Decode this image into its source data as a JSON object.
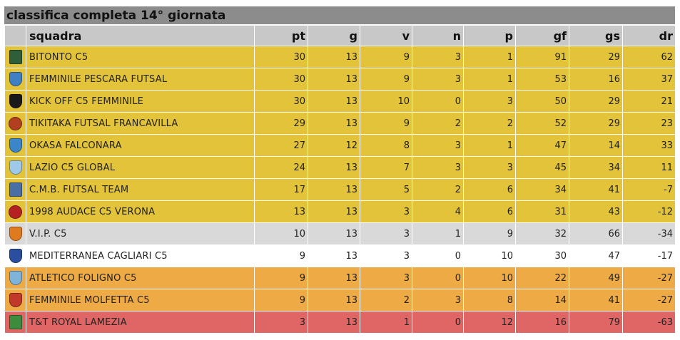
{
  "title": "classifica completa 14° giornata",
  "columns": {
    "team": "squadra",
    "pt": "pt",
    "g": "g",
    "v": "v",
    "n": "n",
    "p": "p",
    "gf": "gf",
    "gs": "gs",
    "dr": "dr"
  },
  "colors": {
    "gold": "#e2c33a",
    "grey": "#d9d9d9",
    "white": "#ffffff",
    "orange": "#eeaa45",
    "red": "#e06666",
    "header": "#c8c8c8",
    "title_bar": "#8c8c8c"
  },
  "rows": [
    {
      "team": "BITONTO C5",
      "pt": "30",
      "g": "13",
      "v": "9",
      "n": "3",
      "p": "1",
      "gf": "91",
      "gs": "29",
      "dr": "62",
      "zone": "gold",
      "logo_icon": "bitonto-crest-icon",
      "logo_color": "#2f5f3a",
      "logo_shape": "square"
    },
    {
      "team": "FEMMINILE PESCARA FUTSAL",
      "pt": "30",
      "g": "13",
      "v": "9",
      "n": "3",
      "p": "1",
      "gf": "53",
      "gs": "16",
      "dr": "37",
      "zone": "gold",
      "logo_icon": "pescara-crest-icon",
      "logo_color": "#3f7fc4",
      "logo_shape": "shield"
    },
    {
      "team": "KICK OFF C5 FEMMINILE",
      "pt": "30",
      "g": "13",
      "v": "10",
      "n": "0",
      "p": "3",
      "gf": "50",
      "gs": "29",
      "dr": "21",
      "zone": "gold",
      "logo_icon": "kickoff-crest-icon",
      "logo_color": "#1a1a1a",
      "logo_shape": "shield"
    },
    {
      "team": "TIKITAKA FUTSAL FRANCAVILLA",
      "pt": "29",
      "g": "13",
      "v": "9",
      "n": "2",
      "p": "2",
      "gf": "52",
      "gs": "29",
      "dr": "23",
      "zone": "gold",
      "logo_icon": "tikitaka-crest-icon",
      "logo_color": "#b0401f",
      "logo_shape": "round"
    },
    {
      "team": "OKASA FALCONARA",
      "pt": "27",
      "g": "12",
      "v": "8",
      "n": "3",
      "p": "1",
      "gf": "47",
      "gs": "14",
      "dr": "33",
      "zone": "gold",
      "logo_icon": "okasa-crest-icon",
      "logo_color": "#3a86c8",
      "logo_shape": "shield"
    },
    {
      "team": "LAZIO C5 GLOBAL",
      "pt": "24",
      "g": "13",
      "v": "7",
      "n": "3",
      "p": "3",
      "gf": "45",
      "gs": "34",
      "dr": "11",
      "zone": "gold",
      "logo_icon": "lazio-eagle-icon",
      "logo_color": "#9ec9e8",
      "logo_shape": "shield"
    },
    {
      "team": "C.M.B. FUTSAL TEAM",
      "pt": "17",
      "g": "13",
      "v": "5",
      "n": "2",
      "p": "6",
      "gf": "34",
      "gs": "41",
      "dr": "-7",
      "zone": "gold",
      "logo_icon": "cmb-crest-icon",
      "logo_color": "#4a6fa5",
      "logo_shape": "square"
    },
    {
      "team": "1998 AUDACE C5 VERONA",
      "pt": "13",
      "g": "13",
      "v": "3",
      "n": "4",
      "p": "6",
      "gf": "31",
      "gs": "43",
      "dr": "-12",
      "zone": "gold",
      "logo_icon": "audace-crest-icon",
      "logo_color": "#b52222",
      "logo_shape": "round"
    },
    {
      "team": "V.I.P. C5",
      "pt": "10",
      "g": "13",
      "v": "3",
      "n": "1",
      "p": "9",
      "gf": "32",
      "gs": "66",
      "dr": "-34",
      "zone": "grey",
      "logo_icon": "vip-crest-icon",
      "logo_color": "#e07a1f",
      "logo_shape": "shield"
    },
    {
      "team": "MEDITERRANEA CAGLIARI C5",
      "pt": "9",
      "g": "13",
      "v": "3",
      "n": "0",
      "p": "10",
      "gf": "30",
      "gs": "47",
      "dr": "-17",
      "zone": "white",
      "logo_icon": "mediterranea-crest-icon",
      "logo_color": "#2b4f9e",
      "logo_shape": "shield"
    },
    {
      "team": "ATLETICO FOLIGNO C5",
      "pt": "9",
      "g": "13",
      "v": "3",
      "n": "0",
      "p": "10",
      "gf": "22",
      "gs": "49",
      "dr": "-27",
      "zone": "orange",
      "logo_icon": "foligno-crest-icon",
      "logo_color": "#7fb3d9",
      "logo_shape": "shield"
    },
    {
      "team": "FEMMINILE MOLFETTA C5",
      "pt": "9",
      "g": "13",
      "v": "2",
      "n": "3",
      "p": "8",
      "gf": "14",
      "gs": "41",
      "dr": "-27",
      "zone": "orange",
      "logo_icon": "molfetta-crest-icon",
      "logo_color": "#c0392b",
      "logo_shape": "shield"
    },
    {
      "team": "T&T ROYAL LAMEZIA",
      "pt": "3",
      "g": "13",
      "v": "1",
      "n": "0",
      "p": "12",
      "gf": "16",
      "gs": "79",
      "dr": "-63",
      "zone": "red",
      "logo_icon": "royal-lamezia-crest-icon",
      "logo_color": "#3d8b3d",
      "logo_shape": "square"
    }
  ]
}
